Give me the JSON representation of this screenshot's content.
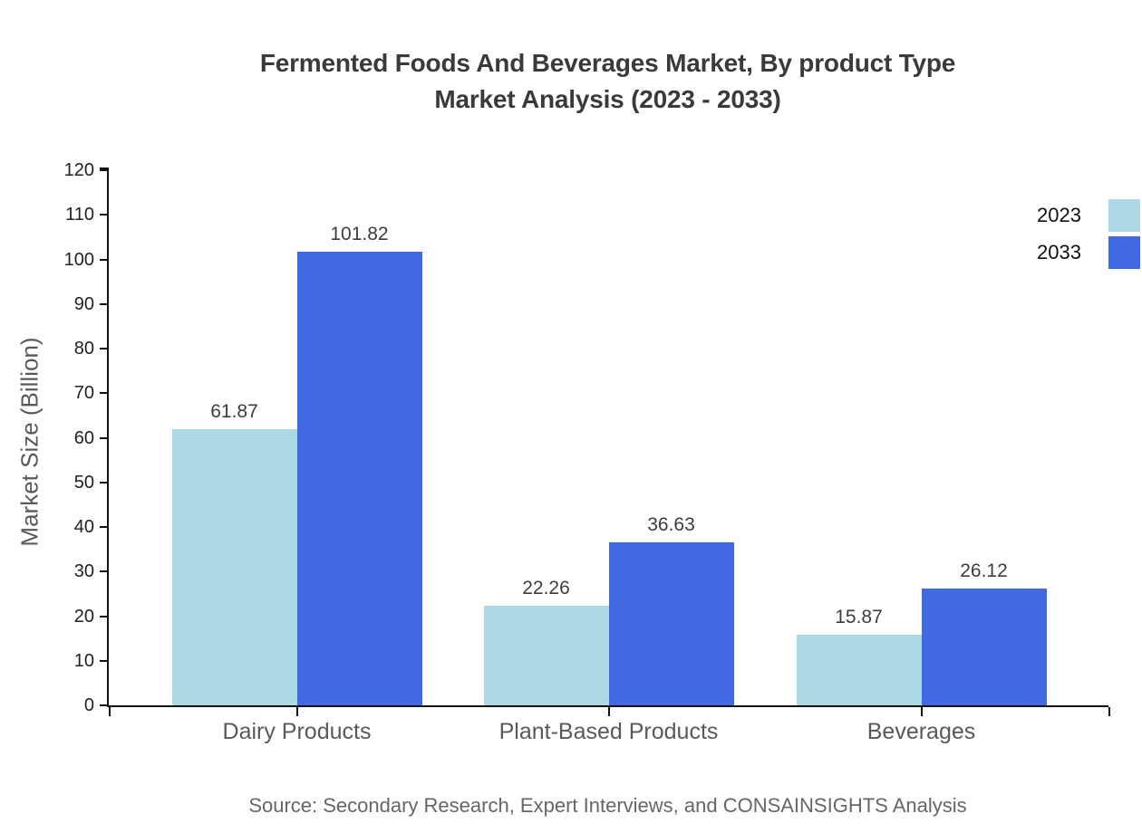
{
  "chart_data": {
    "type": "bar",
    "title": "Fermented Foods And Beverages Market, By product Type Market Analysis (2023 - 2033)",
    "title_lines": [
      "Fermented Foods And Beverages Market, By product Type",
      "Market Analysis (2023 - 2033)"
    ],
    "categories": [
      "Dairy Products",
      "Plant-Based Products",
      "Beverages"
    ],
    "series": [
      {
        "name": "2023",
        "color": "#ADD8E6",
        "values": [
          61.87,
          22.26,
          15.87
        ]
      },
      {
        "name": "2033",
        "color": "#4169E1",
        "values": [
          101.82,
          36.63,
          26.12
        ]
      }
    ],
    "xlabel": "",
    "ylabel": "Market Size (Billion)",
    "ylim": [
      0,
      120
    ],
    "ytick_step": 10,
    "yticks": [
      0,
      10,
      20,
      30,
      40,
      50,
      60,
      70,
      80,
      90,
      100,
      110,
      120
    ],
    "grid": false,
    "legend_position": "top-right",
    "value_label_format": "2-decimals",
    "source": "Source: Secondary Research, Expert Interviews, and CONSAINSIGHTS Analysis"
  }
}
